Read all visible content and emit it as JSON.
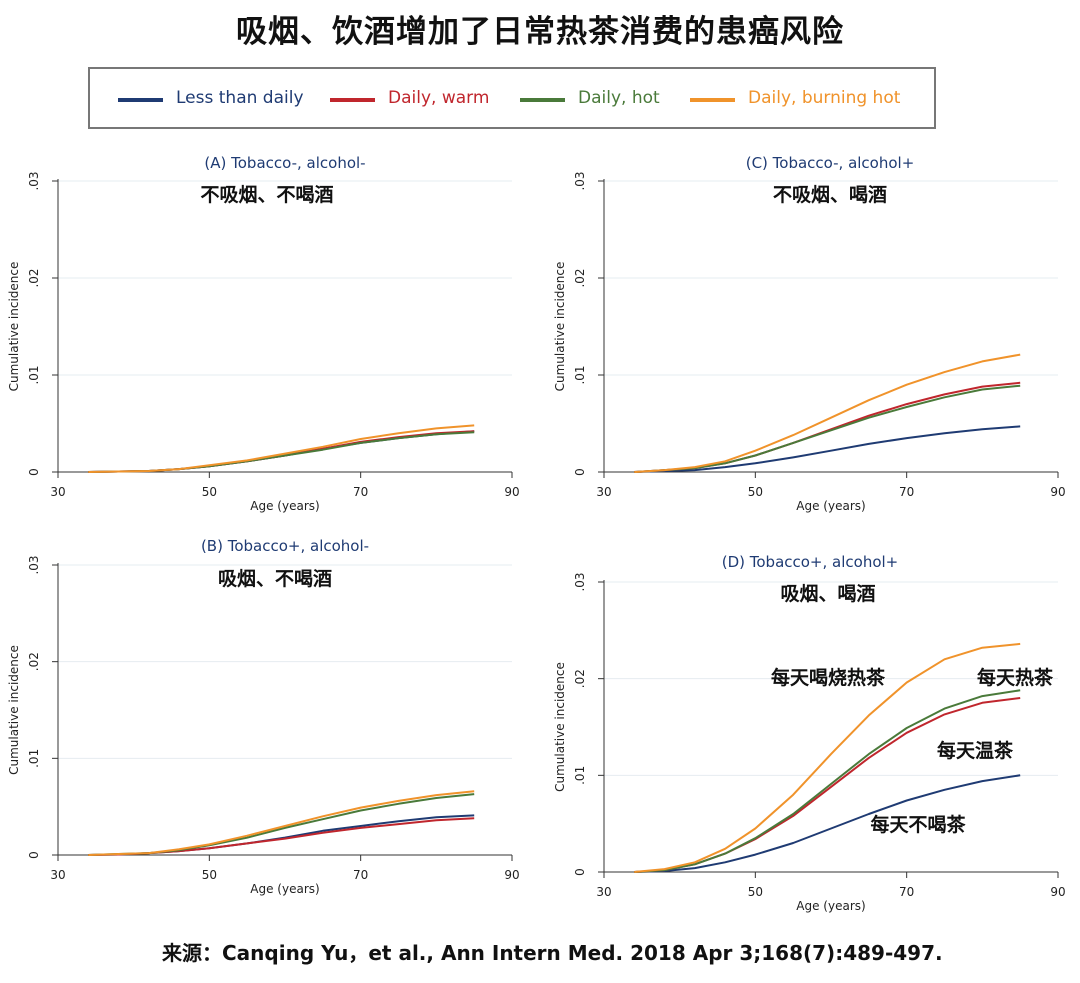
{
  "title": "吸烟、饮酒增加了日常热茶消费的患癌风险",
  "legend": {
    "items": [
      {
        "label": "Less than daily",
        "color": "#1f3b73"
      },
      {
        "label": "Daily, warm",
        "color": "#c0262d"
      },
      {
        "label": "Daily, hot",
        "color": "#4a7a3a"
      },
      {
        "label": "Daily, burning hot",
        "color": "#f0932b"
      }
    ]
  },
  "source": "来源：Canqing Yu，et al., Ann Intern Med. 2018 Apr 3;168(7):489-497.",
  "colors": {
    "title_text": "#1f3b73",
    "axis": "#333333",
    "grid": "#e6ecf1"
  },
  "chart_data": [
    {
      "type": "line",
      "title": "(A)  Tobacco-, alcohol-",
      "subtitle_cn": "不吸烟、不喝酒",
      "xlabel": "Age (years)",
      "ylabel": "Cumulative incidence",
      "xlim": [
        30,
        90
      ],
      "ylim": [
        0,
        0.03
      ],
      "xticks": [
        "30",
        "50",
        "70",
        "90"
      ],
      "yticks": [
        "0",
        ".01",
        ".02",
        ".03"
      ],
      "x": [
        34,
        38,
        42,
        46,
        50,
        55,
        60,
        65,
        70,
        75,
        80,
        85
      ],
      "series": [
        {
          "name": "Less than daily",
          "values": [
            0,
            5e-05,
            0.0001,
            0.0003,
            0.0006,
            0.0011,
            0.0017,
            0.0024,
            0.003,
            0.0035,
            0.0039,
            0.0042
          ]
        },
        {
          "name": "Daily, warm",
          "values": [
            0,
            5e-05,
            0.0001,
            0.0003,
            0.0006,
            0.0011,
            0.0017,
            0.0024,
            0.0031,
            0.0036,
            0.004,
            0.0042
          ]
        },
        {
          "name": "Daily, hot",
          "values": [
            0,
            5e-05,
            0.0001,
            0.0003,
            0.0006,
            0.0011,
            0.0017,
            0.0023,
            0.003,
            0.0035,
            0.0039,
            0.0041
          ]
        },
        {
          "name": "Daily, burning hot",
          "values": [
            0,
            5e-05,
            0.0001,
            0.0003,
            0.0007,
            0.0012,
            0.0019,
            0.0026,
            0.0034,
            0.004,
            0.0045,
            0.0048
          ]
        }
      ],
      "annotations": []
    },
    {
      "type": "line",
      "title": "(C)  Tobacco-, alcohol+",
      "subtitle_cn": "不吸烟、喝酒",
      "xlabel": "Age (years)",
      "ylabel": "Cumulative incidence",
      "xlim": [
        30,
        90
      ],
      "ylim": [
        0,
        0.03
      ],
      "xticks": [
        "30",
        "50",
        "70",
        "90"
      ],
      "yticks": [
        "0",
        ".01",
        ".02",
        ".03"
      ],
      "x": [
        34,
        38,
        42,
        46,
        50,
        55,
        60,
        65,
        70,
        75,
        80,
        85
      ],
      "series": [
        {
          "name": "Less than daily",
          "values": [
            0,
            0.0001,
            0.0002,
            0.0005,
            0.0009,
            0.0015,
            0.0022,
            0.0029,
            0.0035,
            0.004,
            0.0044,
            0.0047
          ]
        },
        {
          "name": "Daily, warm",
          "values": [
            0,
            0.0002,
            0.0004,
            0.0009,
            0.0017,
            0.003,
            0.0044,
            0.0058,
            0.007,
            0.008,
            0.0088,
            0.0092
          ]
        },
        {
          "name": "Daily, hot",
          "values": [
            0,
            0.0002,
            0.0004,
            0.0009,
            0.0017,
            0.003,
            0.0043,
            0.0056,
            0.0067,
            0.0077,
            0.0085,
            0.0089
          ]
        },
        {
          "name": "Daily, burning hot",
          "values": [
            0,
            0.0002,
            0.0005,
            0.0011,
            0.0022,
            0.0038,
            0.0056,
            0.0074,
            0.009,
            0.0103,
            0.0114,
            0.0121
          ]
        }
      ],
      "annotations": []
    },
    {
      "type": "line",
      "title": "(B)  Tobacco+, alcohol-",
      "subtitle_cn": "吸烟、不喝酒",
      "xlabel": "Age (years)",
      "ylabel": "Cumulative incidence",
      "xlim": [
        30,
        90
      ],
      "ylim": [
        0,
        0.03
      ],
      "xticks": [
        "30",
        "50",
        "70",
        "90"
      ],
      "yticks": [
        "0",
        ".01",
        ".02",
        ".03"
      ],
      "x": [
        34,
        38,
        42,
        46,
        50,
        55,
        60,
        65,
        70,
        75,
        80,
        85
      ],
      "series": [
        {
          "name": "Less than daily",
          "values": [
            0,
            5e-05,
            0.0002,
            0.0004,
            0.0007,
            0.0012,
            0.0018,
            0.0025,
            0.003,
            0.0035,
            0.0039,
            0.0041
          ]
        },
        {
          "name": "Daily, warm",
          "values": [
            0,
            5e-05,
            0.0002,
            0.0004,
            0.0007,
            0.0012,
            0.0017,
            0.0023,
            0.0028,
            0.0032,
            0.0036,
            0.0038
          ]
        },
        {
          "name": "Daily, hot",
          "values": [
            0,
            0.0001,
            0.0002,
            0.0005,
            0.001,
            0.0018,
            0.0028,
            0.0037,
            0.0046,
            0.0053,
            0.0059,
            0.0063
          ]
        },
        {
          "name": "Daily, burning hot",
          "values": [
            0,
            0.0001,
            0.0002,
            0.0006,
            0.0011,
            0.002,
            0.003,
            0.004,
            0.0049,
            0.0056,
            0.0062,
            0.0066
          ]
        }
      ],
      "annotations": []
    },
    {
      "type": "line",
      "title": "(D)  Tobacco+, alcohol+",
      "subtitle_cn": "吸烟、喝酒",
      "xlabel": "Age (years)",
      "ylabel": "Cumulative incidence",
      "xlim": [
        30,
        90
      ],
      "ylim": [
        0,
        0.03
      ],
      "xticks": [
        "30",
        "50",
        "70",
        "90"
      ],
      "yticks": [
        "0",
        ".01",
        ".02",
        ".03"
      ],
      "x": [
        34,
        38,
        42,
        46,
        50,
        55,
        60,
        65,
        70,
        75,
        80,
        85
      ],
      "series": [
        {
          "name": "Less than daily",
          "values": [
            0,
            0.0001,
            0.0004,
            0.001,
            0.0018,
            0.003,
            0.0045,
            0.006,
            0.0074,
            0.0085,
            0.0094,
            0.01
          ]
        },
        {
          "name": "Daily, warm",
          "values": [
            0,
            0.0002,
            0.0008,
            0.0019,
            0.0034,
            0.0058,
            0.0088,
            0.0118,
            0.0144,
            0.0163,
            0.0175,
            0.018
          ]
        },
        {
          "name": "Daily, hot",
          "values": [
            0,
            0.0002,
            0.0008,
            0.0019,
            0.0035,
            0.006,
            0.0091,
            0.0122,
            0.0149,
            0.0169,
            0.0182,
            0.0188
          ]
        },
        {
          "name": "Daily, burning hot",
          "values": [
            0,
            0.0003,
            0.001,
            0.0024,
            0.0045,
            0.008,
            0.0122,
            0.0162,
            0.0196,
            0.022,
            0.0232,
            0.0236
          ]
        }
      ],
      "annotations": [
        {
          "text": "每天喝烧热茶",
          "anchor": "left"
        },
        {
          "text": "每天热茶",
          "anchor": "right"
        },
        {
          "text": "每天温茶",
          "anchor": "right"
        },
        {
          "text": "每天不喝茶",
          "anchor": "middle"
        }
      ]
    }
  ]
}
